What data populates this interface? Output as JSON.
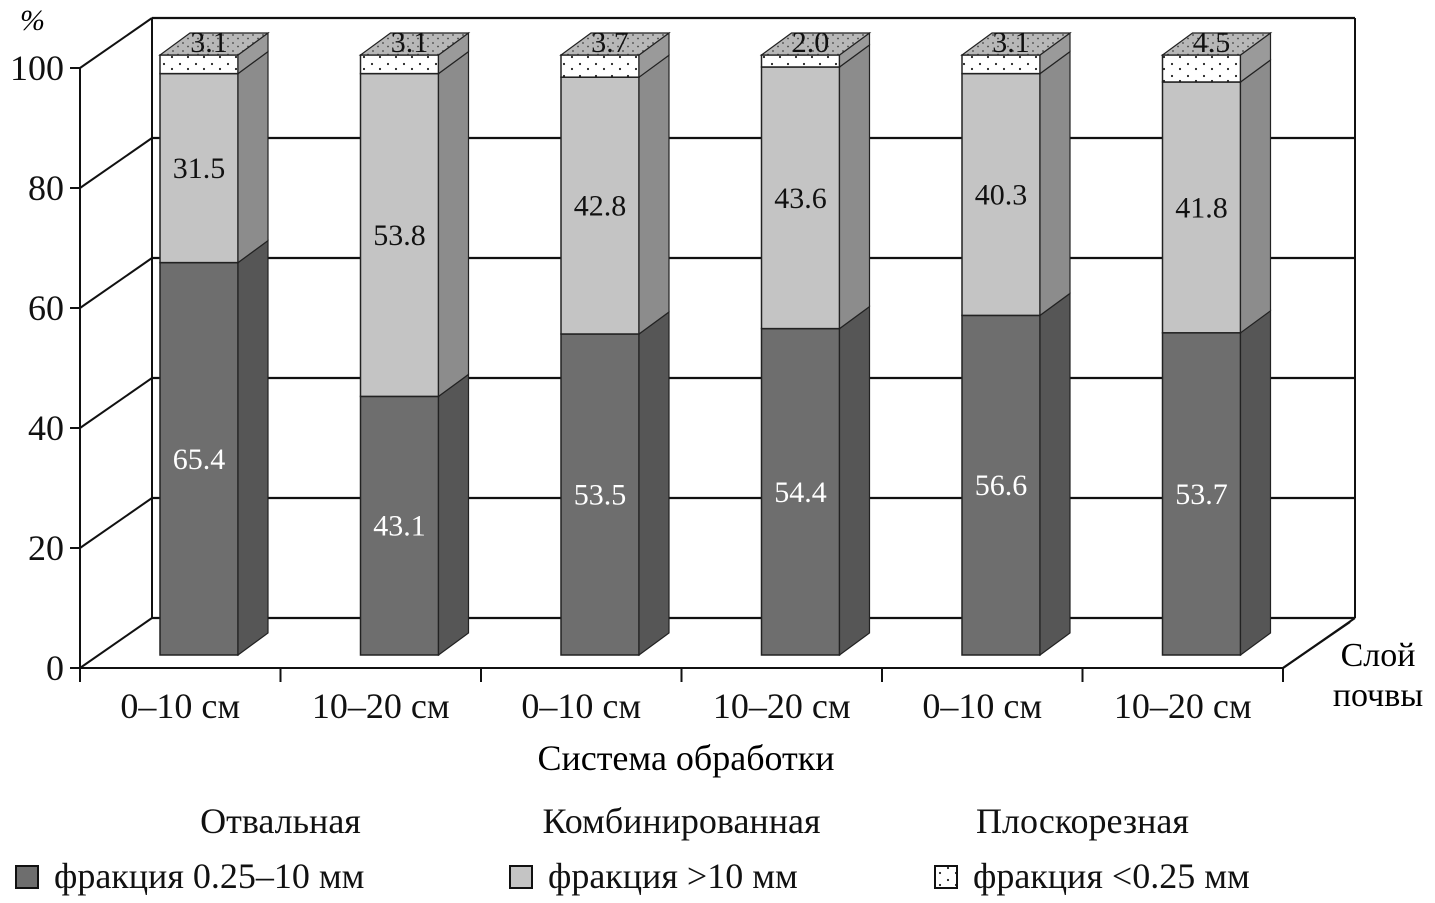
{
  "chart_data": {
    "type": "bar",
    "stacked": true,
    "three_d": true,
    "y_unit": "%",
    "ylim": [
      0,
      100
    ],
    "yticks": [
      "0",
      "20",
      "40",
      "60",
      "80",
      "100"
    ],
    "grid": true,
    "xlabel": "Система обработки",
    "depth_axis_label_line1": "Слой",
    "depth_axis_label_line2": "почвы",
    "categories": [
      "0–10 см",
      "10–20 см",
      "0–10 см",
      "10–20 см",
      "0–10 см",
      "10–20 см"
    ],
    "groups": [
      "Отвальная",
      "Комбинированная",
      "Плоскорезная"
    ],
    "series": [
      {
        "name": "фракция 0.25–10 мм",
        "values": [
          65.4,
          43.1,
          53.5,
          54.4,
          56.6,
          53.7
        ],
        "labels": [
          "65.4",
          "43.1",
          "53.5",
          "54.4",
          "56.6",
          "53.7"
        ],
        "color": "#6e6e6e"
      },
      {
        "name": "фракция >10 мм",
        "values": [
          31.5,
          53.8,
          42.8,
          43.6,
          40.3,
          41.8
        ],
        "labels": [
          "31.5",
          "53.8",
          "42.8",
          "43.6",
          "40.3",
          "41.8"
        ],
        "color": "#c4c4c4"
      },
      {
        "name": "фракция <0.25 мм",
        "values": [
          3.1,
          3.1,
          3.7,
          2.0,
          3.1,
          4.5
        ],
        "labels": [
          "3.1",
          "3.1",
          "3.7",
          "2.0",
          "3.1",
          "4.5"
        ],
        "color": "#ffffff"
      }
    ],
    "legend_position": "bottom"
  }
}
